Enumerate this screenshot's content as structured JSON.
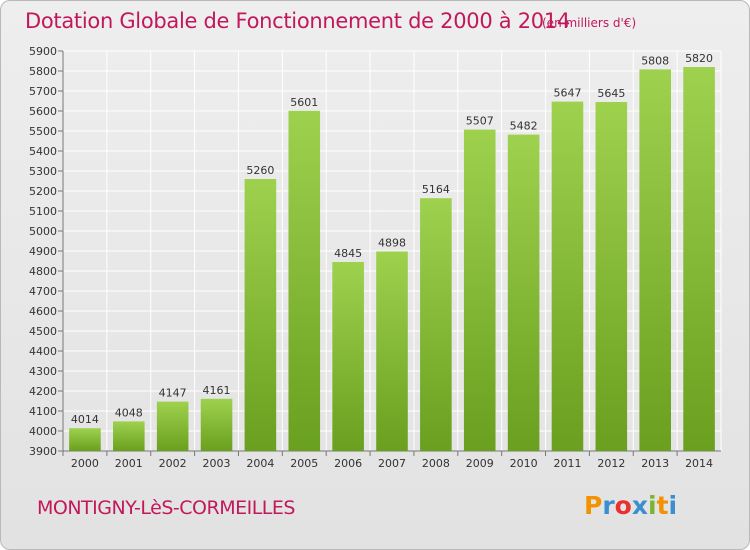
{
  "header": {
    "title": "Dotation Globale de Fonctionnement de 2000 à 2014",
    "unit": "(en milliers d'€)"
  },
  "footer": {
    "commune": "MONTIGNY-LèS-CORMEILLES",
    "logo": "Proxiti"
  },
  "colors": {
    "title": "#c2185b",
    "bar_top": "#9ed14e",
    "bar_bottom": "#6a9f1f",
    "grid": "#ffffff",
    "logo_letters": [
      "#f39200",
      "#3b8ed0",
      "#e8312f",
      "#3b8ed0",
      "#7ab530",
      "#f39200",
      "#3b8ed0"
    ]
  },
  "chart_data": {
    "type": "bar",
    "title": "Dotation Globale de Fonctionnement de 2000 à 2014",
    "xlabel": "",
    "ylabel": "",
    "categories": [
      "2000",
      "2001",
      "2002",
      "2003",
      "2004",
      "2005",
      "2006",
      "2007",
      "2008",
      "2009",
      "2010",
      "2011",
      "2012",
      "2013",
      "2014"
    ],
    "values": [
      4014,
      4048,
      4147,
      4161,
      5260,
      5601,
      4845,
      4898,
      5164,
      5507,
      5482,
      5647,
      5645,
      5808,
      5820
    ],
    "ylim": [
      3900,
      5900
    ],
    "yticks": [
      3900,
      4000,
      4100,
      4200,
      4300,
      4400,
      4500,
      4600,
      4700,
      4800,
      4900,
      5000,
      5100,
      5200,
      5300,
      5400,
      5500,
      5600,
      5700,
      5800,
      5900
    ],
    "grid": true,
    "data_labels": true,
    "legend": "none"
  }
}
